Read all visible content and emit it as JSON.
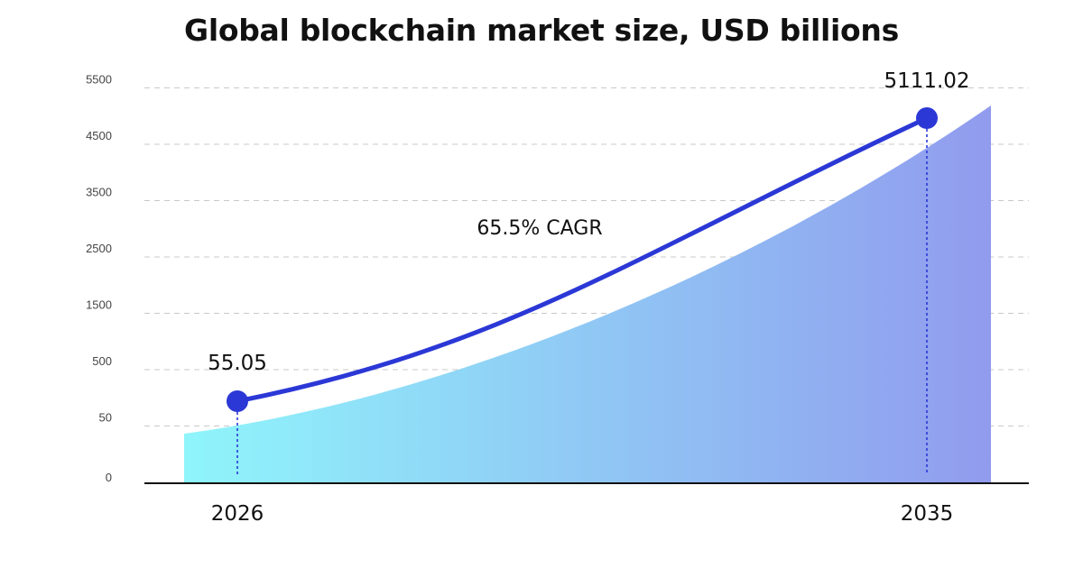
{
  "chart_data": {
    "type": "area",
    "title": "Global blockchain market size, USD billions",
    "xlabel": "",
    "ylabel": "",
    "y_tick_labels": [
      "0",
      "50",
      "500",
      "1500",
      "2500",
      "3500",
      "4500",
      "5500"
    ],
    "x_tick_labels": [
      "2026",
      "2035"
    ],
    "series": [
      {
        "x": [
          "2026",
          "2035"
        ],
        "values": [
          55.05,
          5111.02
        ],
        "data_labels": [
          "55.05",
          "5111.02"
        ]
      }
    ],
    "annotation": "65.5% CAGR",
    "grid": true,
    "legend": "none"
  },
  "colors": {
    "line": "#2b38d6",
    "area_start": "#8ff5fb",
    "area_end": "#919bee",
    "grid": "#c8c8c8",
    "axis": "#111111",
    "tick_text": "#444444"
  }
}
